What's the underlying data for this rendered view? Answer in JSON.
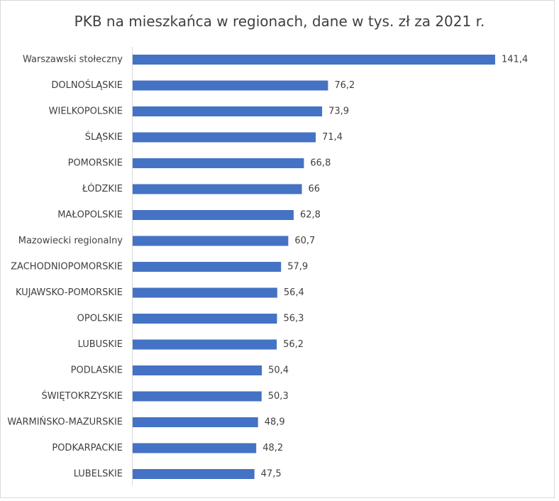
{
  "chart_data": {
    "type": "bar",
    "orientation": "horizontal",
    "title": "PKB na mieszkańca w regionach, dane w tys. zł za 2021 r.",
    "categories": [
      "Warszawski stołeczny",
      "DOLNOŚLĄSKIE",
      "WIELKOPOLSKIE",
      "ŚLĄSKIE",
      "POMORSKIE",
      "ŁÓDZKIE",
      "MAŁOPOLSKIE",
      "Mazowiecki regionalny",
      "ZACHODNIOPOMORSKIE",
      "KUJAWSKO-POMORSKIE",
      "OPOLSKIE",
      "LUBUSKIE",
      "PODLASKIE",
      "ŚWIĘTOKRZYSKIE",
      "WARMIŃSKO-MAZURSKIE",
      "PODKARPACKIE",
      "LUBELSKIE"
    ],
    "values": [
      141.4,
      76.2,
      73.9,
      71.4,
      66.8,
      66,
      62.8,
      60.7,
      57.9,
      56.4,
      56.3,
      56.2,
      50.4,
      50.3,
      48.9,
      48.2,
      47.5
    ],
    "value_labels": [
      "141,4",
      "76,2",
      "73,9",
      "71,4",
      "66,8",
      "66",
      "62,8",
      "60,7",
      "57,9",
      "56,4",
      "56,3",
      "56,2",
      "50,4",
      "50,3",
      "48,9",
      "48,2",
      "47,5"
    ],
    "xlim": [
      0,
      141.4
    ],
    "grid": false,
    "legend": "none",
    "bar_color": "#4472c4",
    "text_color": "#404040",
    "axis_color": "#d9d9d9"
  }
}
